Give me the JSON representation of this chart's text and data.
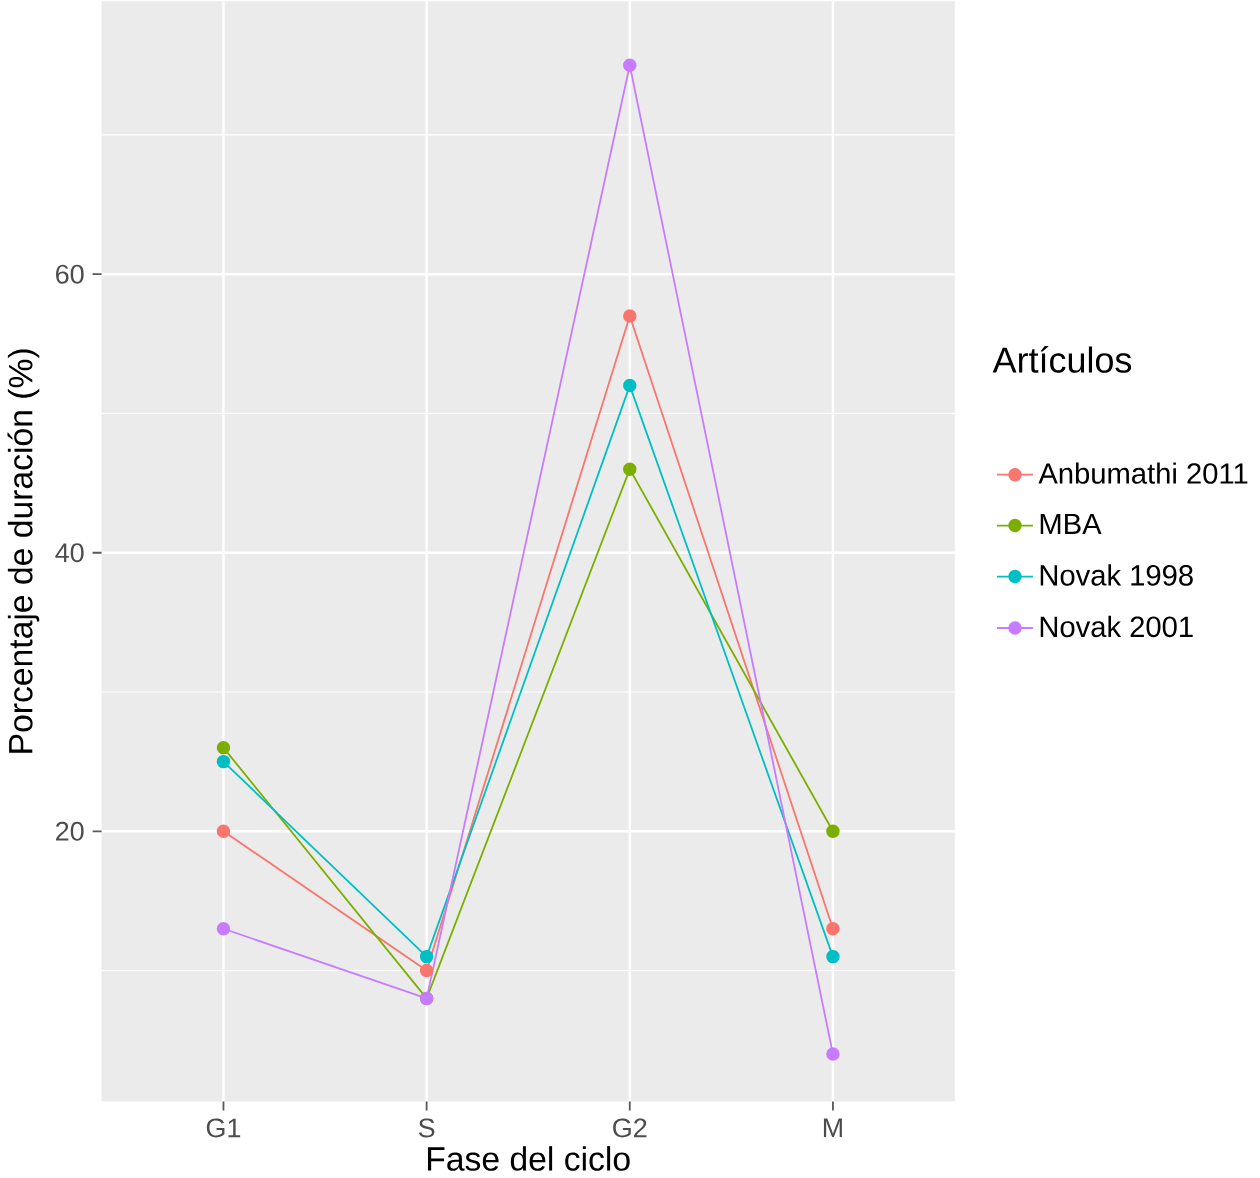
{
  "chart_data": {
    "type": "line",
    "xlabel": "Fase del ciclo",
    "ylabel": "Porcentaje de duración (%)",
    "legend_title": "Artículos",
    "categories": [
      "G1",
      "S",
      "G2",
      "M"
    ],
    "series": [
      {
        "name": "Anbumathi 2011",
        "color": "#f8766d",
        "values": [
          20,
          10,
          57,
          13
        ]
      },
      {
        "name": "MBA",
        "color": "#7cae00",
        "values": [
          26,
          8,
          46,
          20
        ]
      },
      {
        "name": "Novak 1998",
        "color": "#00bfc4",
        "values": [
          25,
          11,
          52,
          11
        ]
      },
      {
        "name": "Novak 2001",
        "color": "#c77cff",
        "values": [
          13,
          8,
          75,
          4
        ]
      }
    ],
    "ylim": [
      0.6,
      79.6
    ],
    "yticks": [
      20,
      40,
      60
    ],
    "grid": true,
    "legend": "right",
    "marker": "circle",
    "line_style": "solid"
  }
}
